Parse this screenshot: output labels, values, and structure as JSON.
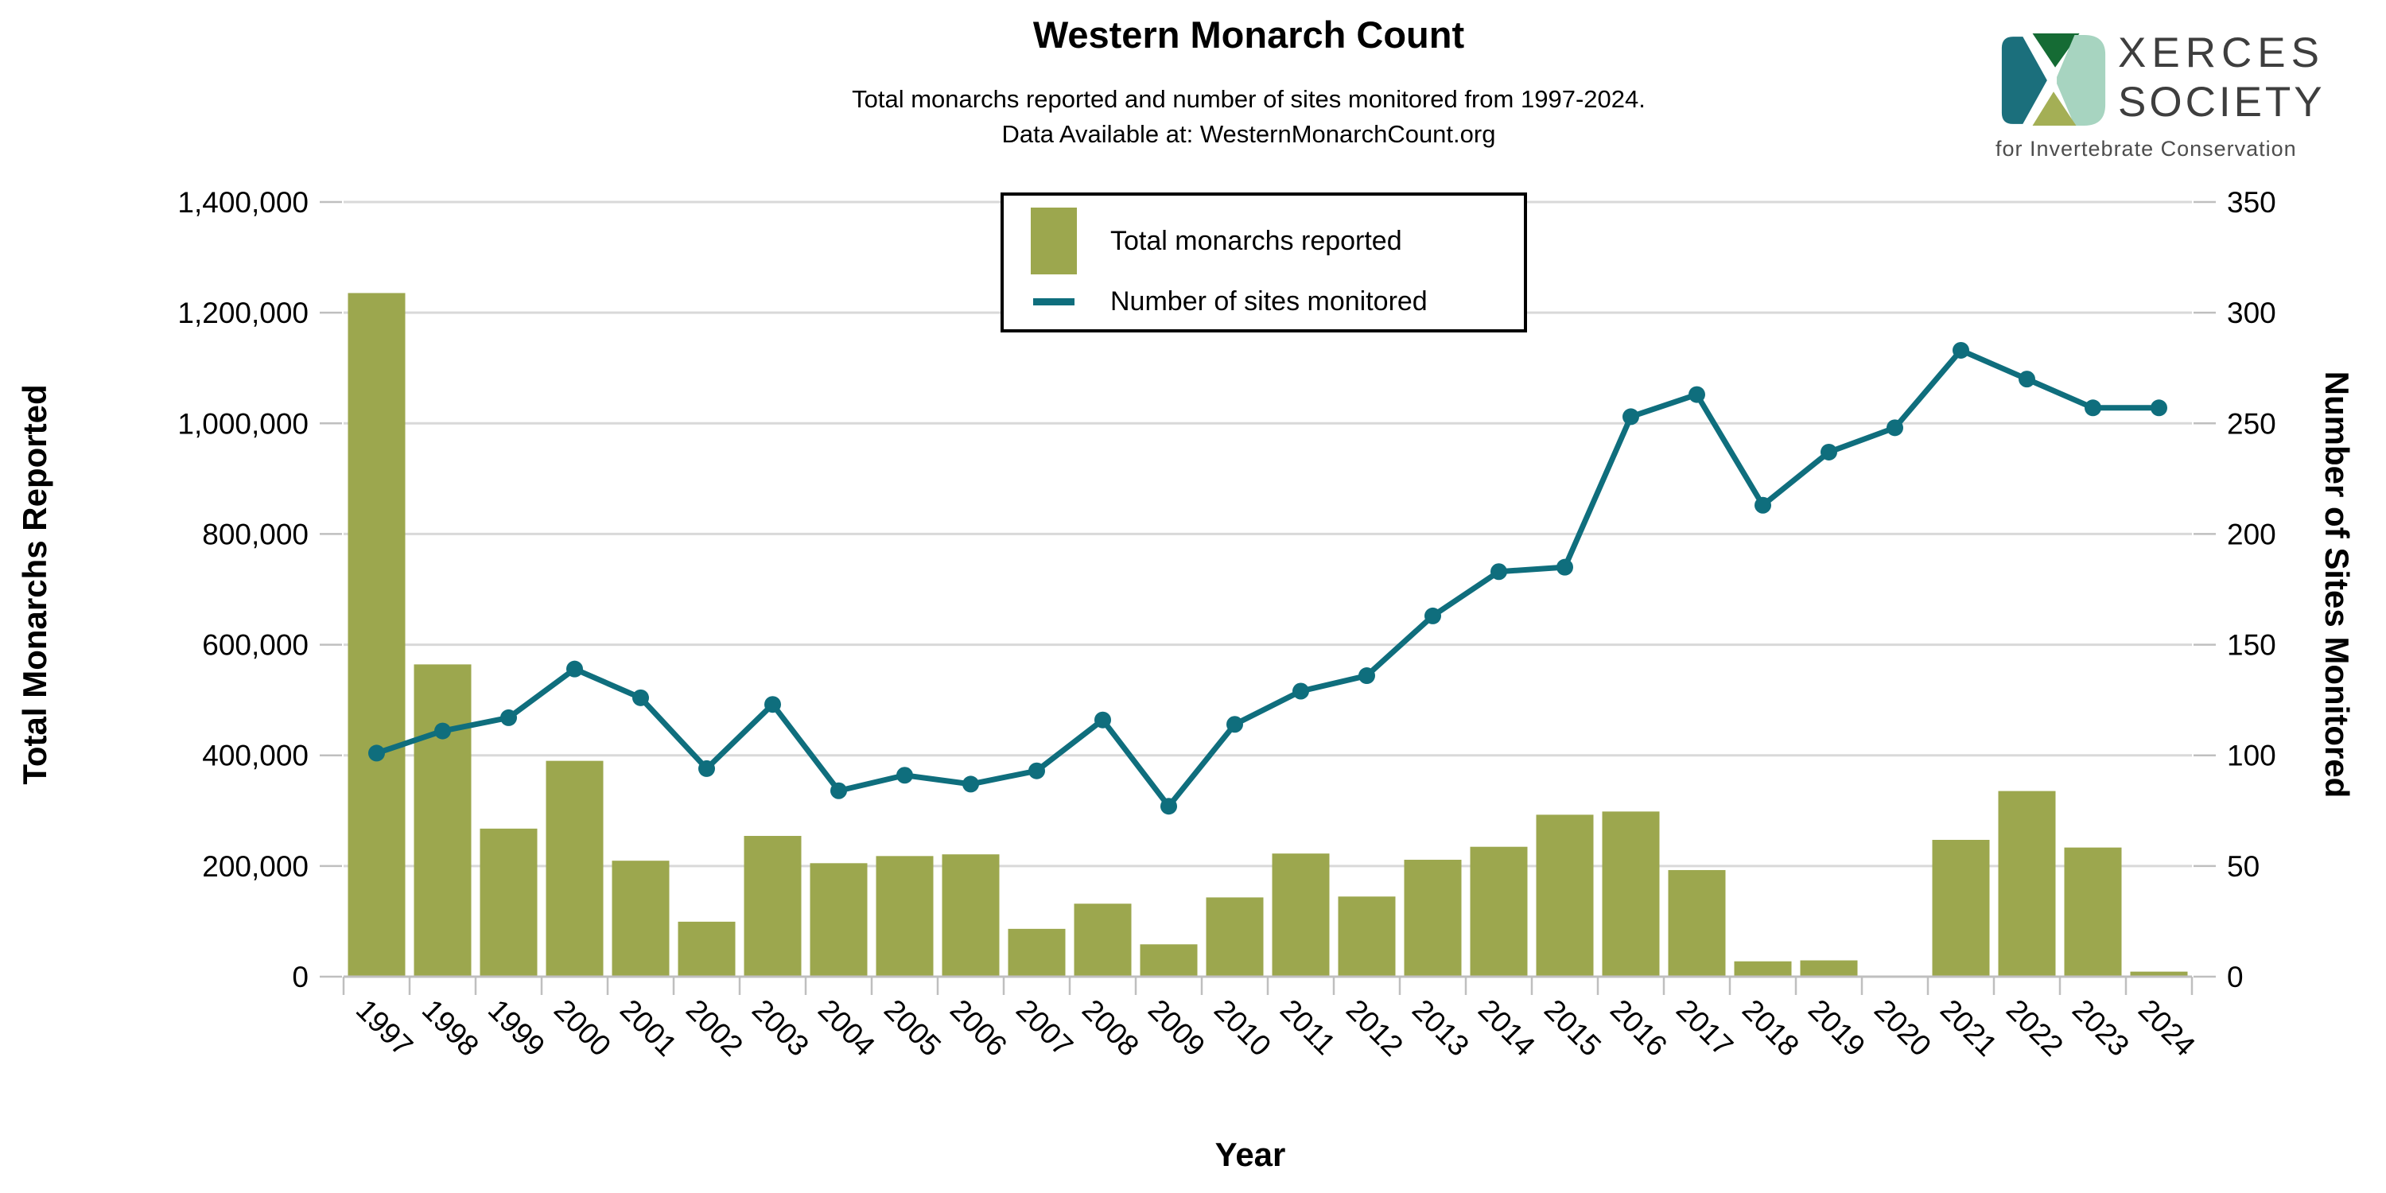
{
  "header": {
    "title": "Western Monarch Count",
    "subtitle_line1": "Total monarchs reported and number of sites monitored from 1997-2024.",
    "subtitle_line2": "Data Available at: WesternMonarchCount.org"
  },
  "logo": {
    "name_line1": "XERCES",
    "name_line2": "SOCIETY",
    "tagline": "for Invertebrate Conservation",
    "mark_colors": {
      "left": "#1B6F7C",
      "top": "#156B34",
      "right": "#A7D4C0",
      "bottom": "#A4AF55"
    }
  },
  "legend": {
    "items": [
      {
        "label": "Total monarchs reported",
        "type": "bar"
      },
      {
        "label": "Number of sites monitored",
        "type": "line"
      }
    ]
  },
  "chart_data": {
    "type": "combo-bar-line",
    "title": "Western Monarch Count",
    "subtitle": "Total monarchs reported and number of sites monitored from 1997-2024. Data Available at: WesternMonarchCount.org",
    "xlabel": "Year",
    "ylabel_left": "Total Monarchs Reported",
    "ylabel_right": "Number of Sites Monitored",
    "grid": true,
    "legend_position": "top-center",
    "categories": [
      "1997",
      "1998",
      "1999",
      "2000",
      "2001",
      "2002",
      "2003",
      "2004",
      "2005",
      "2006",
      "2007",
      "2008",
      "2009",
      "2010",
      "2011",
      "2012",
      "2013",
      "2014",
      "2015",
      "2016",
      "2017",
      "2018",
      "2019",
      "2020",
      "2021",
      "2022",
      "2023",
      "2024"
    ],
    "series": [
      {
        "name": "Total monarchs reported",
        "type": "bar",
        "axis": "left",
        "color": "#9CA74E",
        "values": [
          1235490,
          564349,
          267574,
          390057,
          209570,
          99353,
          254378,
          205085,
          217992,
          221058,
          86437,
          131889,
          58468,
          143204,
          222525,
          144812,
          211275,
          234731,
          292674,
          298464,
          192668,
          27721,
          29418,
          1899,
          247246,
          335479,
          233394,
          9119
        ]
      },
      {
        "name": "Number of sites monitored",
        "type": "line",
        "axis": "right",
        "color": "#0F6E7D",
        "values": [
          101,
          111,
          117,
          139,
          126,
          94,
          123,
          84,
          91,
          87,
          93,
          116,
          77,
          114,
          129,
          136,
          163,
          183,
          185,
          253,
          263,
          213,
          237,
          248,
          283,
          270,
          257,
          257
        ]
      }
    ],
    "left_axis": {
      "min": 0,
      "max": 1400000,
      "step": 200000,
      "tick_labels": [
        "0",
        "200,000",
        "400,000",
        "600,000",
        "800,000",
        "1,000,000",
        "1,200,000",
        "1,400,000"
      ]
    },
    "right_axis": {
      "min": 0,
      "max": 350,
      "step": 50,
      "tick_labels": [
        "0",
        "50",
        "100",
        "150",
        "200",
        "250",
        "300",
        "350"
      ]
    },
    "colors": {
      "gridline": "#D9D9D9",
      "axis": "#BFBFBF",
      "text": "#000000"
    }
  }
}
